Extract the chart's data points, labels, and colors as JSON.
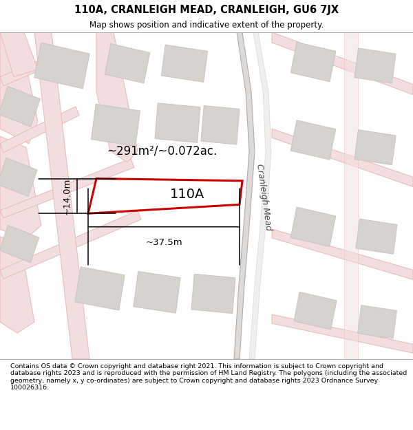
{
  "title": "110A, CRANLEIGH MEAD, CRANLEIGH, GU6 7JX",
  "subtitle": "Map shows position and indicative extent of the property.",
  "footer": "Contains OS data © Crown copyright and database right 2021. This information is subject to Crown copyright and database rights 2023 and is reproduced with the permission of HM Land Registry. The polygons (including the associated geometry, namely x, y co-ordinates) are subject to Crown copyright and database rights 2023 Ordnance Survey 100026316.",
  "area_label": "~291m²/~0.072ac.",
  "plot_label": "110A",
  "dim_width": "~37.5m",
  "dim_height": "~14.0m",
  "road_label": "Cranleigh Mead",
  "map_bg": "#f5f3f1",
  "road_fill": "#f2dede",
  "road_edge": "#e8b8b8",
  "building_fill": "#d6d2ce",
  "building_edge": "#c8c4c0",
  "plot_fill": "#ffffff",
  "plot_edge": "#cc0000",
  "cranleigh_road_fill": "#dedad8",
  "cranleigh_road_edge": "#b0acaa"
}
